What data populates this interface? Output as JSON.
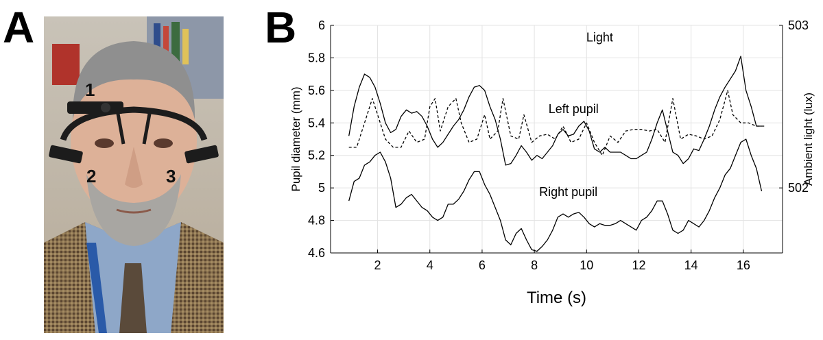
{
  "figure": {
    "panel_a_label": "A",
    "panel_b_label": "B",
    "photo": {
      "description_labels": [
        "1",
        "2",
        "3"
      ]
    }
  },
  "chart_data": {
    "type": "line",
    "title": "",
    "xlabel": "Time (s)",
    "ylabel": "Pupil diameter (mm)",
    "y2label": "Ambient light (lux)",
    "xlim": [
      0.2,
      17.5
    ],
    "ylim": [
      4.6,
      6.0
    ],
    "y2lim": [
      501.6,
      503.0
    ],
    "xticks": [
      2,
      4,
      6,
      8,
      10,
      12,
      14,
      16
    ],
    "xtick_labels": [
      "2",
      "4",
      "6",
      "8",
      "10",
      "12",
      "14",
      "16"
    ],
    "yticks": [
      4.6,
      4.8,
      5.0,
      5.2,
      5.4,
      5.6,
      5.8,
      6.0
    ],
    "ytick_labels": [
      "4.6",
      "4.8",
      "5",
      "5.2",
      "5.4",
      "5.6",
      "5.8",
      "6"
    ],
    "y2ticks": [
      502,
      503
    ],
    "y2tick_labels": [
      "502",
      "503"
    ],
    "grid": true,
    "series": [
      {
        "name": "Light",
        "axis": "right",
        "style": "dashed",
        "label_at": [
          10.5,
          502.9
        ],
        "x": [
          0.9,
          1.2,
          1.5,
          1.8,
          2.0,
          2.3,
          2.6,
          2.9,
          3.2,
          3.5,
          3.8,
          4.0,
          4.2,
          4.4,
          4.7,
          5.0,
          5.2,
          5.5,
          5.8,
          6.1,
          6.3,
          6.6,
          6.8,
          7.1,
          7.4,
          7.6,
          7.9,
          8.2,
          8.5,
          8.8,
          9.1,
          9.4,
          9.7,
          10.0,
          10.3,
          10.6,
          10.9,
          11.2,
          11.5,
          11.8,
          12.1,
          12.4,
          12.7,
          13.0,
          13.3,
          13.6,
          13.9,
          14.2,
          14.5,
          14.8,
          15.1,
          15.4,
          15.6,
          15.9,
          16.2,
          16.5,
          16.8
        ],
        "y": [
          502.25,
          502.25,
          502.4,
          502.55,
          502.45,
          502.3,
          502.25,
          502.25,
          502.35,
          502.28,
          502.3,
          502.5,
          502.55,
          502.35,
          502.5,
          502.55,
          502.4,
          502.28,
          502.3,
          502.45,
          502.3,
          502.35,
          502.55,
          502.32,
          502.3,
          502.45,
          502.28,
          502.32,
          502.33,
          502.3,
          502.38,
          502.28,
          502.3,
          502.4,
          502.28,
          502.2,
          502.32,
          502.28,
          502.35,
          502.36,
          502.36,
          502.35,
          502.36,
          502.28,
          502.55,
          502.3,
          502.33,
          502.32,
          502.3,
          502.32,
          502.42,
          502.6,
          502.45,
          502.4,
          502.4,
          502.38,
          502.38
        ]
      },
      {
        "name": "Left pupil",
        "axis": "left",
        "style": "solid",
        "label_at": [
          9.5,
          5.46
        ],
        "x": [
          0.9,
          1.1,
          1.3,
          1.5,
          1.7,
          1.9,
          2.1,
          2.3,
          2.5,
          2.7,
          2.9,
          3.1,
          3.3,
          3.5,
          3.7,
          3.9,
          4.1,
          4.3,
          4.5,
          4.7,
          4.9,
          5.1,
          5.3,
          5.5,
          5.7,
          5.9,
          6.1,
          6.3,
          6.5,
          6.7,
          6.9,
          7.1,
          7.3,
          7.5,
          7.7,
          7.9,
          8.1,
          8.3,
          8.5,
          8.7,
          8.9,
          9.1,
          9.3,
          9.5,
          9.7,
          9.9,
          10.1,
          10.3,
          10.5,
          10.7,
          10.9,
          11.1,
          11.3,
          11.5,
          11.7,
          11.9,
          12.1,
          12.3,
          12.5,
          12.7,
          12.9,
          13.1,
          13.3,
          13.5,
          13.7,
          13.9,
          14.1,
          14.3,
          14.5,
          14.7,
          14.9,
          15.1,
          15.3,
          15.5,
          15.7,
          15.9,
          16.1,
          16.3,
          16.5,
          16.7
        ],
        "y": [
          5.32,
          5.5,
          5.62,
          5.7,
          5.68,
          5.62,
          5.52,
          5.4,
          5.34,
          5.36,
          5.44,
          5.48,
          5.46,
          5.47,
          5.44,
          5.38,
          5.3,
          5.25,
          5.28,
          5.33,
          5.38,
          5.42,
          5.48,
          5.56,
          5.62,
          5.63,
          5.6,
          5.5,
          5.42,
          5.3,
          5.14,
          5.15,
          5.2,
          5.26,
          5.22,
          5.17,
          5.2,
          5.18,
          5.22,
          5.26,
          5.33,
          5.36,
          5.32,
          5.33,
          5.38,
          5.41,
          5.35,
          5.24,
          5.22,
          5.25,
          5.22,
          5.22,
          5.22,
          5.2,
          5.18,
          5.18,
          5.2,
          5.22,
          5.3,
          5.4,
          5.48,
          5.35,
          5.22,
          5.2,
          5.15,
          5.18,
          5.24,
          5.23,
          5.3,
          5.38,
          5.48,
          5.56,
          5.62,
          5.67,
          5.72,
          5.81,
          5.6,
          5.5,
          5.38,
          5.38
        ]
      },
      {
        "name": "Right pupil",
        "axis": "left",
        "style": "solid",
        "label_at": [
          9.3,
          4.95
        ],
        "x": [
          0.9,
          1.1,
          1.3,
          1.5,
          1.7,
          1.9,
          2.1,
          2.3,
          2.5,
          2.7,
          2.9,
          3.1,
          3.3,
          3.5,
          3.7,
          3.9,
          4.1,
          4.3,
          4.5,
          4.7,
          4.9,
          5.1,
          5.3,
          5.5,
          5.7,
          5.9,
          6.1,
          6.3,
          6.5,
          6.7,
          6.9,
          7.1,
          7.3,
          7.5,
          7.7,
          7.9,
          8.1,
          8.3,
          8.5,
          8.7,
          8.9,
          9.1,
          9.3,
          9.5,
          9.7,
          9.9,
          10.1,
          10.3,
          10.5,
          10.7,
          10.9,
          11.1,
          11.3,
          11.5,
          11.7,
          11.9,
          12.1,
          12.3,
          12.5,
          12.7,
          12.9,
          13.1,
          13.3,
          13.5,
          13.7,
          13.9,
          14.1,
          14.3,
          14.5,
          14.7,
          14.9,
          15.1,
          15.3,
          15.5,
          15.7,
          15.9,
          16.1,
          16.3,
          16.5,
          16.7
        ],
        "y": [
          4.92,
          5.04,
          5.06,
          5.14,
          5.16,
          5.2,
          5.22,
          5.16,
          5.06,
          4.88,
          4.9,
          4.94,
          4.96,
          4.92,
          4.88,
          4.86,
          4.82,
          4.8,
          4.82,
          4.9,
          4.9,
          4.93,
          4.98,
          5.05,
          5.1,
          5.1,
          5.02,
          4.96,
          4.88,
          4.8,
          4.68,
          4.65,
          4.72,
          4.75,
          4.68,
          4.62,
          4.61,
          4.64,
          4.68,
          4.74,
          4.82,
          4.84,
          4.82,
          4.84,
          4.85,
          4.82,
          4.78,
          4.76,
          4.78,
          4.77,
          4.77,
          4.78,
          4.8,
          4.78,
          4.76,
          4.74,
          4.8,
          4.82,
          4.86,
          4.92,
          4.92,
          4.84,
          4.74,
          4.72,
          4.74,
          4.8,
          4.78,
          4.76,
          4.8,
          4.86,
          4.94,
          5.0,
          5.08,
          5.12,
          5.2,
          5.28,
          5.3,
          5.2,
          5.12,
          4.98
        ]
      }
    ]
  }
}
